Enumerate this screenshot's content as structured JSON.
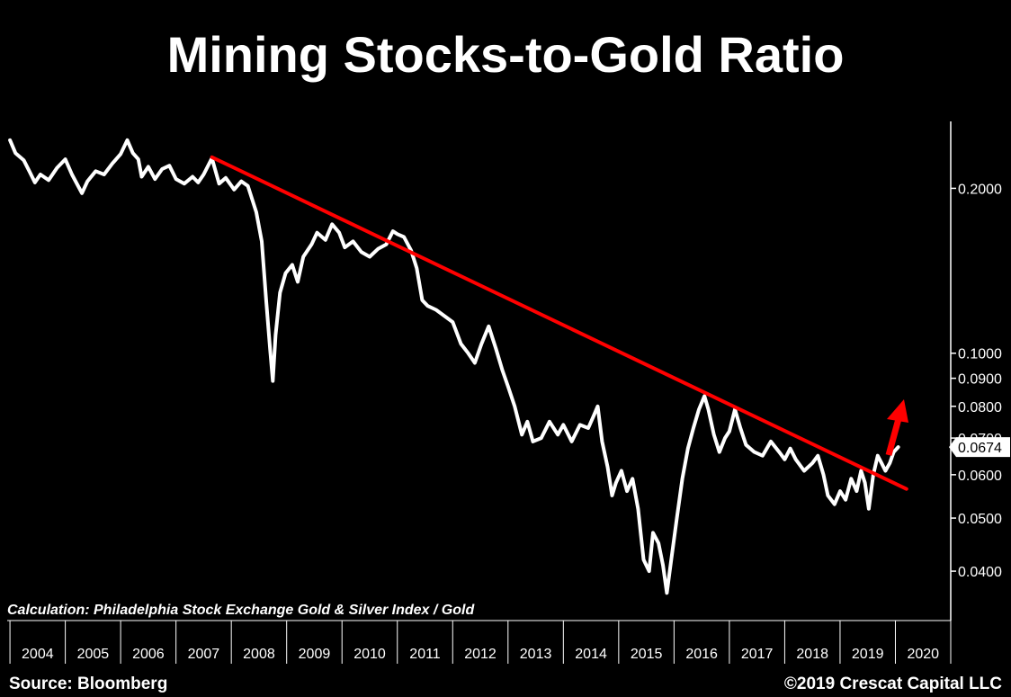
{
  "chart_data": {
    "type": "line",
    "title": "Mining Stocks-to-Gold Ratio",
    "y_scale": "log",
    "ylim": [
      0.0325,
      0.265
    ],
    "xlim": [
      2003.95,
      2021.0
    ],
    "y_ticks": [
      {
        "value": 0.2,
        "label": "0.2000"
      },
      {
        "value": 0.1,
        "label": "0.1000"
      },
      {
        "value": 0.09,
        "label": "0.0900"
      },
      {
        "value": 0.08,
        "label": "0.0800"
      },
      {
        "value": 0.07,
        "label": "0.0700"
      },
      {
        "value": 0.06,
        "label": "0.0600"
      },
      {
        "value": 0.05,
        "label": "0.0500"
      },
      {
        "value": 0.04,
        "label": "0.0400"
      }
    ],
    "x_tick_labels": [
      "2004",
      "2005",
      "2006",
      "2007",
      "2008",
      "2009",
      "2010",
      "2011",
      "2012",
      "2013",
      "2014",
      "2015",
      "2016",
      "2017",
      "2018",
      "2019",
      "2020"
    ],
    "grid": false,
    "series": [
      {
        "color": "#ffffff",
        "points": [
          [
            2004.0,
            0.245
          ],
          [
            2004.1,
            0.232
          ],
          [
            2004.25,
            0.225
          ],
          [
            2004.35,
            0.215
          ],
          [
            2004.45,
            0.205
          ],
          [
            2004.55,
            0.212
          ],
          [
            2004.7,
            0.207
          ],
          [
            2004.85,
            0.218
          ],
          [
            2005.0,
            0.226
          ],
          [
            2005.12,
            0.212
          ],
          [
            2005.3,
            0.196
          ],
          [
            2005.4,
            0.206
          ],
          [
            2005.55,
            0.215
          ],
          [
            2005.7,
            0.212
          ],
          [
            2005.85,
            0.222
          ],
          [
            2006.0,
            0.231
          ],
          [
            2006.12,
            0.245
          ],
          [
            2006.22,
            0.232
          ],
          [
            2006.32,
            0.226
          ],
          [
            2006.38,
            0.21
          ],
          [
            2006.5,
            0.219
          ],
          [
            2006.62,
            0.208
          ],
          [
            2006.75,
            0.217
          ],
          [
            2006.88,
            0.22
          ],
          [
            2007.0,
            0.208
          ],
          [
            2007.15,
            0.204
          ],
          [
            2007.3,
            0.21
          ],
          [
            2007.4,
            0.205
          ],
          [
            2007.5,
            0.212
          ],
          [
            2007.65,
            0.227
          ],
          [
            2007.78,
            0.204
          ],
          [
            2007.9,
            0.209
          ],
          [
            2008.05,
            0.199
          ],
          [
            2008.18,
            0.206
          ],
          [
            2008.3,
            0.202
          ],
          [
            2008.45,
            0.181
          ],
          [
            2008.55,
            0.16
          ],
          [
            2008.63,
            0.125
          ],
          [
            2008.7,
            0.102
          ],
          [
            2008.75,
            0.089
          ],
          [
            2008.8,
            0.108
          ],
          [
            2008.88,
            0.129
          ],
          [
            2008.98,
            0.14
          ],
          [
            2009.1,
            0.145
          ],
          [
            2009.2,
            0.135
          ],
          [
            2009.3,
            0.15
          ],
          [
            2009.45,
            0.158
          ],
          [
            2009.55,
            0.166
          ],
          [
            2009.7,
            0.161
          ],
          [
            2009.82,
            0.172
          ],
          [
            2009.95,
            0.166
          ],
          [
            2010.05,
            0.156
          ],
          [
            2010.2,
            0.16
          ],
          [
            2010.35,
            0.153
          ],
          [
            2010.5,
            0.15
          ],
          [
            2010.65,
            0.155
          ],
          [
            2010.8,
            0.158
          ],
          [
            2010.92,
            0.167
          ],
          [
            2011.0,
            0.165
          ],
          [
            2011.12,
            0.163
          ],
          [
            2011.25,
            0.154
          ],
          [
            2011.35,
            0.143
          ],
          [
            2011.45,
            0.125
          ],
          [
            2011.55,
            0.122
          ],
          [
            2011.7,
            0.12
          ],
          [
            2011.85,
            0.117
          ],
          [
            2012.0,
            0.114
          ],
          [
            2012.15,
            0.104
          ],
          [
            2012.28,
            0.1
          ],
          [
            2012.4,
            0.096
          ],
          [
            2012.52,
            0.104
          ],
          [
            2012.65,
            0.112
          ],
          [
            2012.78,
            0.102
          ],
          [
            2012.9,
            0.093
          ],
          [
            2013.0,
            0.087
          ],
          [
            2013.12,
            0.08
          ],
          [
            2013.25,
            0.071
          ],
          [
            2013.35,
            0.075
          ],
          [
            2013.45,
            0.069
          ],
          [
            2013.6,
            0.07
          ],
          [
            2013.75,
            0.075
          ],
          [
            2013.9,
            0.071
          ],
          [
            2014.0,
            0.074
          ],
          [
            2014.15,
            0.069
          ],
          [
            2014.3,
            0.074
          ],
          [
            2014.45,
            0.073
          ],
          [
            2014.55,
            0.077
          ],
          [
            2014.62,
            0.08
          ],
          [
            2014.7,
            0.069
          ],
          [
            2014.8,
            0.062
          ],
          [
            2014.88,
            0.055
          ],
          [
            2014.95,
            0.058
          ],
          [
            2015.05,
            0.061
          ],
          [
            2015.15,
            0.056
          ],
          [
            2015.25,
            0.059
          ],
          [
            2015.35,
            0.052
          ],
          [
            2015.45,
            0.042
          ],
          [
            2015.55,
            0.04
          ],
          [
            2015.62,
            0.047
          ],
          [
            2015.72,
            0.045
          ],
          [
            2015.8,
            0.041
          ],
          [
            2015.87,
            0.0365
          ],
          [
            2015.95,
            0.042
          ],
          [
            2016.05,
            0.05
          ],
          [
            2016.15,
            0.059
          ],
          [
            2016.25,
            0.067
          ],
          [
            2016.35,
            0.073
          ],
          [
            2016.45,
            0.079
          ],
          [
            2016.55,
            0.0835
          ],
          [
            2016.62,
            0.079
          ],
          [
            2016.72,
            0.071
          ],
          [
            2016.82,
            0.066
          ],
          [
            2016.92,
            0.07
          ],
          [
            2017.0,
            0.072
          ],
          [
            2017.1,
            0.079
          ],
          [
            2017.2,
            0.073
          ],
          [
            2017.3,
            0.068
          ],
          [
            2017.45,
            0.066
          ],
          [
            2017.6,
            0.065
          ],
          [
            2017.75,
            0.069
          ],
          [
            2017.9,
            0.066
          ],
          [
            2018.0,
            0.064
          ],
          [
            2018.1,
            0.067
          ],
          [
            2018.2,
            0.064
          ],
          [
            2018.35,
            0.061
          ],
          [
            2018.5,
            0.063
          ],
          [
            2018.6,
            0.065
          ],
          [
            2018.7,
            0.06
          ],
          [
            2018.78,
            0.055
          ],
          [
            2018.9,
            0.053
          ],
          [
            2019.0,
            0.056
          ],
          [
            2019.1,
            0.054
          ],
          [
            2019.2,
            0.059
          ],
          [
            2019.3,
            0.056
          ],
          [
            2019.38,
            0.061
          ],
          [
            2019.45,
            0.058
          ],
          [
            2019.52,
            0.052
          ],
          [
            2019.6,
            0.06
          ],
          [
            2019.68,
            0.065
          ],
          [
            2019.75,
            0.063
          ],
          [
            2019.82,
            0.061
          ],
          [
            2019.9,
            0.063
          ],
          [
            2019.97,
            0.066
          ],
          [
            2020.05,
            0.0674
          ]
        ]
      },
      {
        "color": "#ff0000",
        "points": [
          [
            2007.65,
            0.228
          ],
          [
            2020.2,
            0.0565
          ]
        ]
      }
    ],
    "last_value": {
      "value": 0.0674,
      "label": "0.0674"
    },
    "annotation": {
      "arrow_color": "#ff0000"
    }
  },
  "notes": {
    "calculation": "Calculation: Philadelphia Stock Exchange Gold & Silver Index / Gold",
    "source": "Source: Bloomberg",
    "copyright": "©2019 Crescat Capital LLC"
  }
}
